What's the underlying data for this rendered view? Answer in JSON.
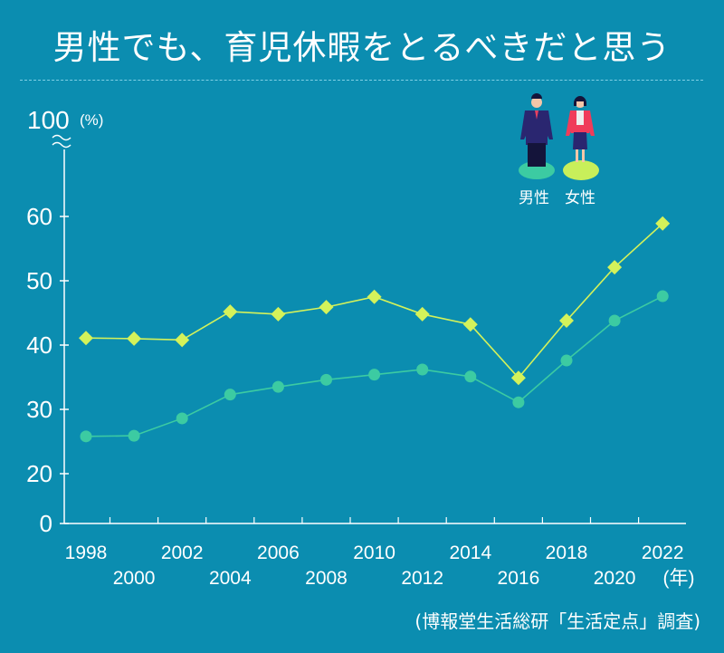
{
  "title": "男性でも、育児休暇をとるべきだと思う",
  "source": "(博報堂生活総研「生活定点」調査)",
  "colors": {
    "background": "#0b8db0",
    "women": "#d4f25a",
    "men": "#3ccba2"
  },
  "chart_data": {
    "type": "line",
    "title": "男性でも、育児休暇をとるべきだと思う",
    "ylabel": "(%)",
    "xlabel": "(年)",
    "ylim": [
      0,
      100
    ],
    "y_ticks": [
      "0",
      "20",
      "30",
      "40",
      "50",
      "60",
      "100"
    ],
    "axis_break": [
      20,
      60
    ],
    "x": [
      "1998",
      "2000",
      "2002",
      "2004",
      "2006",
      "2008",
      "2010",
      "2012",
      "2014",
      "2016",
      "2018",
      "2020",
      "2022"
    ],
    "series": [
      {
        "name": "女性",
        "marker": "diamond",
        "values": [
          41.1,
          41.0,
          40.8,
          45.2,
          44.8,
          45.9,
          47.5,
          44.8,
          43.2,
          34.9,
          43.8,
          52.1,
          58.9
        ]
      },
      {
        "name": "男性",
        "marker": "circle",
        "values": [
          25.8,
          25.9,
          28.6,
          32.3,
          33.5,
          34.6,
          35.4,
          36.2,
          35.1,
          31.1,
          37.6,
          43.8,
          47.6
        ]
      }
    ],
    "legend": [
      "男性",
      "女性"
    ],
    "legend_position": "top-right",
    "grid": false
  }
}
